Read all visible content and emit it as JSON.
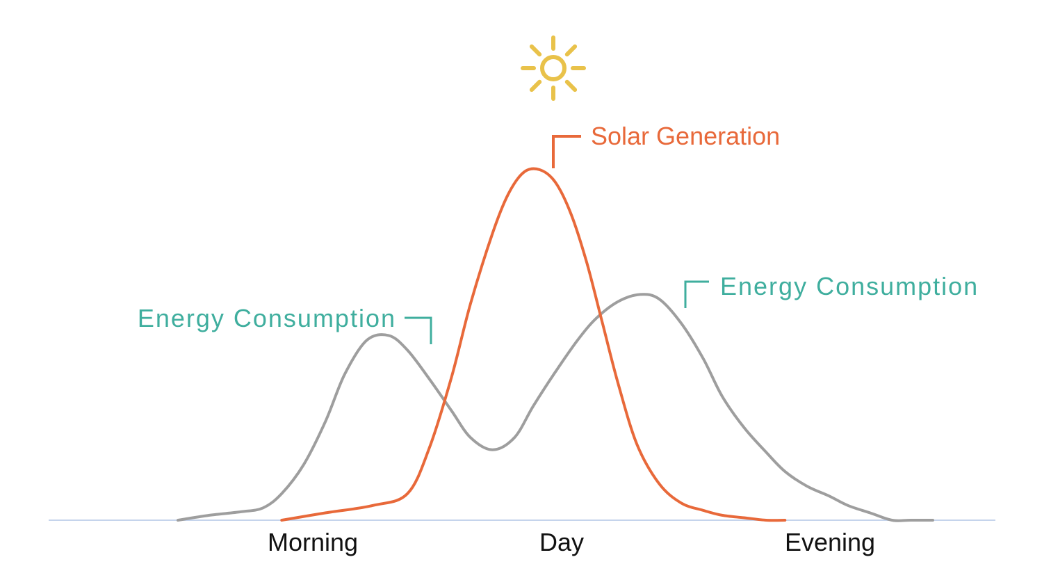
{
  "colors": {
    "solar": "#e8693a",
    "consumption": "#9e9e9e",
    "label_teal": "#3fae9e",
    "sun": "#e9c24a",
    "baseline": "#c5d4ec"
  },
  "icons": {
    "sun": "sun-icon"
  },
  "chart_data": {
    "type": "line",
    "xlabel": "",
    "ylabel": "",
    "categories": [
      "Morning",
      "Day",
      "Evening"
    ],
    "xlim": [
      0,
      24
    ],
    "ylim": [
      0,
      1.05
    ],
    "grid": false,
    "legend": "none",
    "series": [
      {
        "name": "Energy Consumption",
        "label_left": "Energy Consumption",
        "label_right": "Energy Consumption",
        "color": "#9e9e9e",
        "x": [
          0,
          1,
          2,
          2.7,
          3.3,
          4,
          4.7,
          5.3,
          6,
          6.7,
          7.3,
          8,
          8.7,
          9.3,
          10,
          10.7,
          11.3,
          12,
          12.7,
          13.3,
          14,
          14.7,
          15.3,
          16,
          16.7,
          17.3,
          18,
          18.7,
          19.3,
          20,
          20.7,
          21.3,
          22,
          22.7,
          23.3,
          24
        ],
        "values": [
          0.0,
          0.014,
          0.024,
          0.035,
          0.076,
          0.159,
          0.284,
          0.416,
          0.513,
          0.527,
          0.485,
          0.402,
          0.312,
          0.236,
          0.201,
          0.236,
          0.326,
          0.423,
          0.513,
          0.576,
          0.624,
          0.644,
          0.631,
          0.562,
          0.461,
          0.354,
          0.264,
          0.194,
          0.139,
          0.097,
          0.069,
          0.042,
          0.021,
          0.0,
          0.0,
          0.0
        ]
      },
      {
        "name": "Solar Generation",
        "label": "Solar Generation",
        "color": "#e8693a",
        "x": [
          3.3,
          4.7,
          6.2,
          7.3,
          8,
          8.7,
          9.3,
          10,
          10.5,
          11,
          11.5,
          12,
          12.5,
          13,
          13.5,
          14,
          14.6,
          15.3,
          16,
          16.7,
          17.3,
          18,
          18.7,
          19.3
        ],
        "values": [
          0.0,
          0.021,
          0.042,
          0.076,
          0.208,
          0.409,
          0.617,
          0.818,
          0.93,
          0.993,
          1.0,
          0.964,
          0.873,
          0.734,
          0.561,
          0.388,
          0.215,
          0.104,
          0.049,
          0.028,
          0.014,
          0.007,
          0.0,
          0.0
        ]
      }
    ]
  }
}
